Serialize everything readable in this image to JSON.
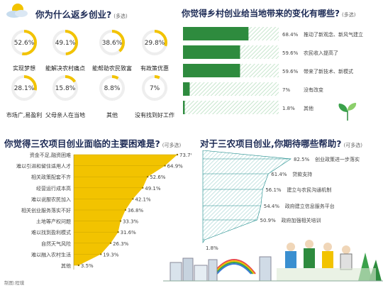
{
  "colors": {
    "yellow": "#f2c300",
    "green": "#2e8b3e",
    "teal": "#1a8a8a",
    "navy": "#1c2a55",
    "hatch_green": "#b8dfc0",
    "hatch_teal": "#9ed2cf"
  },
  "section1": {
    "title": "你为什么返乡创业?",
    "note": "(多选)",
    "chart_data": {
      "type": "donut",
      "items": [
        {
          "label": "实现梦想",
          "value": 52.6,
          "pct": "52.6%"
        },
        {
          "label": "能解决农村痛点",
          "value": 49.1,
          "pct": "49.1%"
        },
        {
          "label": "能帮助农民致富",
          "value": 38.6,
          "pct": "38.6%"
        },
        {
          "label": "有政策优惠",
          "value": 29.8,
          "pct": "29.8%"
        },
        {
          "label": "市场广,易盈利",
          "value": 28.1,
          "pct": "28.1%"
        },
        {
          "label": "父母亲人在当地",
          "value": 15.8,
          "pct": "15.8%"
        },
        {
          "label": "其他",
          "value": 8.8,
          "pct": "8.8%"
        },
        {
          "label": "没有找到好工作",
          "value": 7,
          "pct": "7%"
        }
      ]
    }
  },
  "section2": {
    "title": "你觉得乡村创业给当地带来的变化有哪些?",
    "note": "(多选)",
    "chart_data": {
      "type": "bar",
      "orientation": "horizontal",
      "items": [
        {
          "label": "推动了新观念、新风气建立",
          "value": 68.4,
          "pct": "68.4%"
        },
        {
          "label": "农民收入提高了",
          "value": 59.6,
          "pct": "59.6%"
        },
        {
          "label": "带来了新技术、新模式",
          "value": 59.6,
          "pct": "59.6%"
        },
        {
          "label": "没有改变",
          "value": 7,
          "pct": "7%"
        },
        {
          "label": "其他",
          "value": 1.8,
          "pct": "1.8%"
        }
      ]
    }
  },
  "section3": {
    "title": "你觉得三农项目创业面临的主要困难是?",
    "note": "(可多选)",
    "chart_data": {
      "type": "area",
      "items": [
        {
          "label": "资金不足,融资困难",
          "value": 73.7,
          "pct": "73.7%"
        },
        {
          "label": "难以引进和留住适用人才",
          "value": 64.9,
          "pct": "64.9%"
        },
        {
          "label": "相关政策配套不齐",
          "value": 52.6,
          "pct": "52.6%"
        },
        {
          "label": "经营运行成本高",
          "value": 49.1,
          "pct": "49.1%"
        },
        {
          "label": "难以说服农民加入",
          "value": 42.1,
          "pct": "42.1%"
        },
        {
          "label": "相关创业服务落实不好",
          "value": 36.8,
          "pct": "36.8%"
        },
        {
          "label": "土地等产权问题",
          "value": 33.3,
          "pct": "33.3%"
        },
        {
          "label": "难以找到盈利模式",
          "value": 31.6,
          "pct": "31.6%"
        },
        {
          "label": "自然天气风险",
          "value": 26.3,
          "pct": "26.3%"
        },
        {
          "label": "难以融入农村生活",
          "value": 19.3,
          "pct": "19.3%"
        },
        {
          "label": "其他",
          "value": 3.5,
          "pct": "3.5%"
        }
      ]
    }
  },
  "section4": {
    "title": "对于三农项目创业,你期待哪些帮助?",
    "note": "(可多选)",
    "chart_data": {
      "type": "area",
      "items": [
        {
          "label": "创业政策进一步落实",
          "value": 82.5,
          "pct": "82.5%"
        },
        {
          "label": "贷款支持",
          "value": 61.4,
          "pct": "61.4%"
        },
        {
          "label": "建立与农民沟通机制",
          "value": 56.1,
          "pct": "56.1%"
        },
        {
          "label": "政府建立信息服务平台",
          "value": 54.4,
          "pct": "54.4%"
        },
        {
          "label": "政府加强相关培训",
          "value": 50.9,
          "pct": "50.9%"
        },
        {
          "label": "",
          "value": 1.8,
          "pct": "1.8%"
        }
      ]
    }
  },
  "credit": "制图:程璞"
}
